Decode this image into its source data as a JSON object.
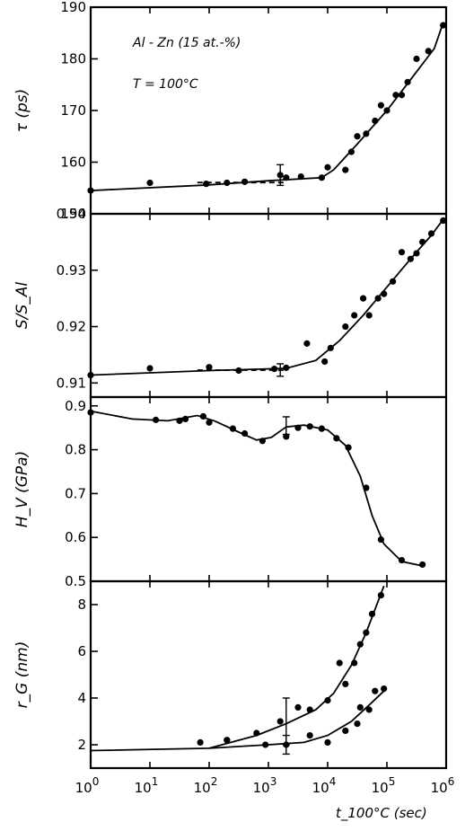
{
  "chart_data": [
    {
      "type": "scatter",
      "ylabel": "τ (ps)",
      "ylim": [
        150,
        190
      ],
      "yticks": [
        150,
        160,
        170,
        180,
        190
      ],
      "annotations": [
        "Al - Zn (15 at.-%)",
        "T = 100°C"
      ],
      "x_log": true,
      "xlim_exp": [
        0,
        6
      ],
      "series": [
        {
          "points": [
            [
              0,
              154.5
            ],
            [
              1,
              156
            ],
            [
              1.95,
              155.8
            ],
            [
              2.3,
              156
            ],
            [
              2.6,
              156.2
            ],
            [
              3.2,
              157.5
            ],
            [
              3.3,
              157
            ],
            [
              3.55,
              157.2
            ],
            [
              3.9,
              157
            ],
            [
              4.0,
              159
            ],
            [
              4.3,
              158.5
            ],
            [
              4.4,
              162
            ],
            [
              4.5,
              165
            ],
            [
              4.65,
              165.5
            ],
            [
              4.8,
              168
            ],
            [
              4.9,
              171
            ],
            [
              5.0,
              170
            ],
            [
              5.15,
              173
            ],
            [
              5.25,
              173
            ],
            [
              5.35,
              175.5
            ],
            [
              5.5,
              180
            ],
            [
              5.7,
              181.5
            ],
            [
              5.95,
              186.5
            ]
          ]
        }
      ],
      "error_bars": [
        {
          "x": 3.2,
          "y": 157.5,
          "low": 155.5,
          "high": 159.5
        }
      ],
      "curve": [
        [
          0,
          154.5
        ],
        [
          2,
          155.6
        ],
        [
          3,
          156.4
        ],
        [
          3.9,
          157
        ],
        [
          4.1,
          158.5
        ],
        [
          4.5,
          163.5
        ],
        [
          5,
          170
        ],
        [
          5.5,
          177.5
        ],
        [
          5.8,
          182
        ],
        [
          5.95,
          187
        ]
      ],
      "dashed_range": [
        1.8,
        3.3
      ]
    },
    {
      "type": "scatter",
      "ylabel": "S/S_Al",
      "ylim": [
        0.9075,
        0.94
      ],
      "yticks": [
        0.91,
        0.92,
        0.93,
        0.94
      ],
      "x_log": true,
      "xlim_exp": [
        0,
        6
      ],
      "series": [
        {
          "points": [
            [
              0,
              0.9114
            ],
            [
              1,
              0.9126
            ],
            [
              2.0,
              0.9128
            ],
            [
              2.5,
              0.9122
            ],
            [
              3.1,
              0.9125
            ],
            [
              3.3,
              0.9127
            ],
            [
              3.65,
              0.917
            ],
            [
              3.95,
              0.9138
            ],
            [
              4.05,
              0.9162
            ],
            [
              4.3,
              0.92
            ],
            [
              4.45,
              0.922
            ],
            [
              4.6,
              0.925
            ],
            [
              4.7,
              0.922
            ],
            [
              4.85,
              0.925
            ],
            [
              4.95,
              0.9258
            ],
            [
              5.1,
              0.928
            ],
            [
              5.25,
              0.9332
            ],
            [
              5.4,
              0.932
            ],
            [
              5.5,
              0.933
            ],
            [
              5.6,
              0.935
            ],
            [
              5.75,
              0.9365
            ],
            [
              5.95,
              0.9388
            ]
          ]
        }
      ],
      "error_bars": [
        {
          "x": 3.2,
          "y": 0.9123,
          "low": 0.9112,
          "high": 0.9134
        }
      ],
      "curve": [
        [
          0,
          0.9114
        ],
        [
          2,
          0.9122
        ],
        [
          3.3,
          0.9126
        ],
        [
          3.8,
          0.914
        ],
        [
          4.2,
          0.9175
        ],
        [
          4.6,
          0.922
        ],
        [
          5,
          0.927
        ],
        [
          5.4,
          0.932
        ],
        [
          5.75,
          0.9362
        ],
        [
          5.95,
          0.939
        ]
      ],
      "dashed_range": [
        1.8,
        3.3
      ]
    },
    {
      "type": "scatter",
      "ylabel": "H_V (GPa)",
      "ylim": [
        0.5,
        0.92
      ],
      "yticks": [
        0.5,
        0.6,
        0.7,
        0.8,
        0.9
      ],
      "x_log": true,
      "xlim_exp": [
        0,
        6
      ],
      "series": [
        {
          "points": [
            [
              0,
              0.885
            ],
            [
              1.1,
              0.868
            ],
            [
              1.5,
              0.866
            ],
            [
              1.6,
              0.87
            ],
            [
              1.9,
              0.876
            ],
            [
              2.0,
              0.862
            ],
            [
              2.4,
              0.848
            ],
            [
              2.6,
              0.837
            ],
            [
              2.9,
              0.82
            ],
            [
              3.3,
              0.83
            ],
            [
              3.5,
              0.85
            ],
            [
              3.7,
              0.853
            ],
            [
              3.9,
              0.848
            ],
            [
              4.15,
              0.826
            ],
            [
              4.35,
              0.805
            ],
            [
              4.65,
              0.713
            ],
            [
              4.9,
              0.595
            ],
            [
              5.25,
              0.548
            ],
            [
              5.6,
              0.538
            ]
          ]
        }
      ],
      "error_bars": [
        {
          "x": 3.3,
          "y": 0.855,
          "low": 0.835,
          "high": 0.875
        }
      ],
      "curve": [
        [
          0,
          0.888
        ],
        [
          0.7,
          0.87
        ],
        [
          1.3,
          0.866
        ],
        [
          1.8,
          0.878
        ],
        [
          2.1,
          0.865
        ],
        [
          2.5,
          0.84
        ],
        [
          2.8,
          0.822
        ],
        [
          3.05,
          0.828
        ],
        [
          3.3,
          0.852
        ],
        [
          3.6,
          0.856
        ],
        [
          4.0,
          0.845
        ],
        [
          4.3,
          0.81
        ],
        [
          4.55,
          0.74
        ],
        [
          4.75,
          0.65
        ],
        [
          4.95,
          0.585
        ],
        [
          5.25,
          0.545
        ],
        [
          5.6,
          0.535
        ]
      ]
    },
    {
      "type": "scatter",
      "ylabel": "r_G (nm)",
      "ylim": [
        1.0,
        9.0
      ],
      "yticks": [
        2,
        4,
        6,
        8
      ],
      "xlabel": "t_100°C (sec)",
      "x_log": true,
      "xlim_exp": [
        0,
        6
      ],
      "xticks": [
        "10^0",
        "10^1",
        "10^2",
        "10^3",
        "10^4",
        "10^5",
        "10^6"
      ],
      "series": [
        {
          "points": [
            [
              1.85,
              2.1
            ],
            [
              2.3,
              2.2
            ],
            [
              2.95,
              2.0
            ],
            [
              3.3,
              2.0
            ],
            [
              3.7,
              2.4
            ],
            [
              4.0,
              2.1
            ],
            [
              4.3,
              2.6
            ],
            [
              4.5,
              2.9
            ],
            [
              4.7,
              3.5
            ],
            [
              4.8,
              4.3
            ],
            [
              4.95,
              4.4
            ],
            [
              4.55,
              3.6
            ]
          ]
        },
        {
          "points": [
            [
              2.3,
              2.2
            ],
            [
              2.8,
              2.5
            ],
            [
              3.2,
              3.0
            ],
            [
              3.5,
              3.6
            ],
            [
              3.7,
              3.5
            ],
            [
              4.0,
              3.9
            ],
            [
              4.2,
              5.5
            ],
            [
              4.3,
              4.6
            ],
            [
              4.45,
              5.5
            ],
            [
              4.55,
              6.3
            ],
            [
              4.65,
              6.8
            ],
            [
              4.75,
              7.6
            ],
            [
              4.9,
              8.4
            ]
          ]
        }
      ],
      "error_bars": [
        {
          "x": 3.3,
          "y": 3.0,
          "low": 2.0,
          "high": 4.0
        },
        {
          "x": 3.3,
          "y": 2.0,
          "low": 1.6,
          "high": 2.4
        }
      ],
      "curves": [
        [
          [
            0,
            1.75
          ],
          [
            2.0,
            1.85
          ],
          [
            3.0,
            2.0
          ],
          [
            3.6,
            2.1
          ],
          [
            4.0,
            2.4
          ],
          [
            4.4,
            3.0
          ],
          [
            4.7,
            3.7
          ],
          [
            4.95,
            4.3
          ]
        ],
        [
          [
            2.0,
            1.85
          ],
          [
            2.8,
            2.4
          ],
          [
            3.3,
            2.9
          ],
          [
            3.8,
            3.5
          ],
          [
            4.1,
            4.2
          ],
          [
            4.4,
            5.4
          ],
          [
            4.65,
            6.8
          ],
          [
            4.95,
            8.8
          ]
        ]
      ]
    }
  ]
}
